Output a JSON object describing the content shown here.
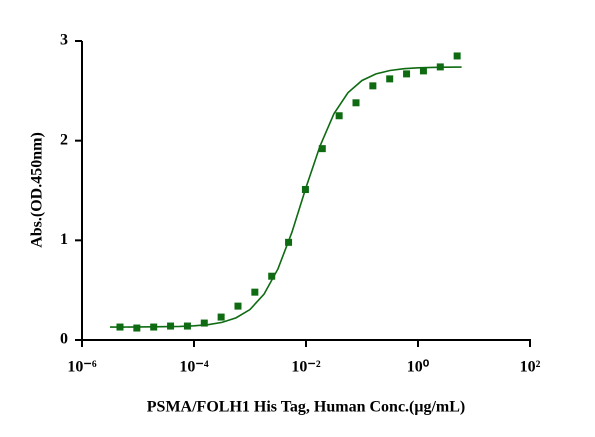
{
  "chart_data": {
    "type": "scatter",
    "xlabel": "PSMA/FOLH1 His Tag, Human Conc.(μg/mL)",
    "ylabel": "Abs.(OD.450nm)",
    "xscale": "log",
    "xlim": [
      1e-06,
      100
    ],
    "xticks": [
      {
        "value": 1e-06,
        "label": "10⁻⁶"
      },
      {
        "value": 0.0001,
        "label": "10⁻⁴"
      },
      {
        "value": 0.01,
        "label": "10⁻²"
      },
      {
        "value": 1,
        "label": "10⁰"
      },
      {
        "value": 100,
        "label": "10²"
      }
    ],
    "ylim": [
      0,
      3
    ],
    "yticks": [
      0,
      1,
      2,
      3
    ],
    "grid": false,
    "series": [
      {
        "type": "scatter",
        "marker": "square",
        "color": "#0e6b12",
        "x": [
          4.76837158203125e-06,
          9.5367431640625e-06,
          1.9073486328125e-05,
          3.814697265625e-05,
          7.62939453125e-05,
          0.000152587890625,
          0.00030517578125,
          0.0006103515625,
          0.001220703125,
          0.00244140625,
          0.0048828125,
          0.009765625,
          0.01953125,
          0.0390625,
          0.078125,
          0.15625,
          0.3125,
          0.625,
          1.25,
          2.5,
          5
        ],
        "values": [
          0.13,
          0.12,
          0.13,
          0.14,
          0.14,
          0.17,
          0.23,
          0.34,
          0.48,
          0.64,
          0.98,
          1.51,
          1.92,
          2.25,
          2.38,
          2.55,
          2.62,
          2.67,
          2.7,
          2.74,
          2.85
        ]
      },
      {
        "type": "line",
        "color": "#0e6b12",
        "x": [
          3.16e-06,
          5.62e-06,
          1.78e-05,
          5.62e-05,
          0.0001,
          0.000178,
          0.000316,
          0.000562,
          0.001,
          0.00178,
          0.00316,
          0.00562,
          0.01,
          0.0178,
          0.0316,
          0.0562,
          0.1,
          0.178,
          0.316,
          0.562,
          1,
          1.78,
          3.16,
          6
        ],
        "values": [
          0.13,
          0.13,
          0.132,
          0.136,
          0.142,
          0.154,
          0.177,
          0.222,
          0.306,
          0.46,
          0.714,
          1.083,
          1.53,
          1.946,
          2.271,
          2.482,
          2.604,
          2.67,
          2.704,
          2.722,
          2.731,
          2.735,
          2.737,
          2.738
        ]
      }
    ]
  }
}
